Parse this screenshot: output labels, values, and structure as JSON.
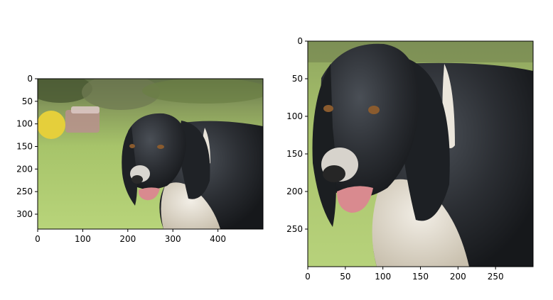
{
  "panels": [
    {
      "id": "left",
      "image": "dog-in-garden",
      "x_ticks": [
        "0",
        "100",
        "200",
        "300",
        "400"
      ],
      "y_ticks": [
        "0",
        "50",
        "100",
        "150",
        "200",
        "250",
        "300"
      ],
      "x_range": [
        0,
        500
      ],
      "y_range": [
        0,
        333
      ]
    },
    {
      "id": "right",
      "image": "dog-crop-closeup",
      "x_ticks": [
        "0",
        "50",
        "100",
        "150",
        "200",
        "250"
      ],
      "y_ticks": [
        "0",
        "50",
        "100",
        "150",
        "200",
        "250"
      ],
      "x_range": [
        0,
        300
      ],
      "y_range": [
        0,
        300
      ]
    }
  ],
  "colors": {
    "grass": "#a7c46a",
    "fur": "#2c2f33",
    "white_fur": "#e8e2d6",
    "tongue": "#d98a8f"
  }
}
